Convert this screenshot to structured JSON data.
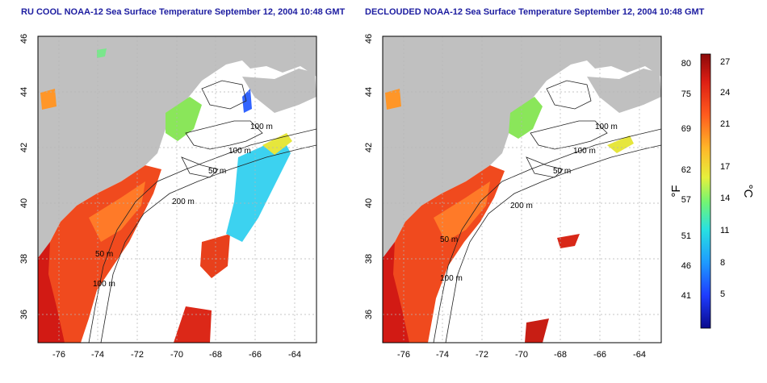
{
  "titles": {
    "left": "RU COOL NOAA-12 Sea Surface Temperature September 12, 2004 10:48 GMT",
    "right": "DECLOUDED NOAA-12 Sea Surface Temperature September 12, 2004 10:48 GMT"
  },
  "axes": {
    "lon_ticks": [
      "-76",
      "-74",
      "-72",
      "-70",
      "-68",
      "-66",
      "-64"
    ],
    "lat_ticks": [
      "36",
      "38",
      "40",
      "42",
      "44",
      "46"
    ],
    "lon_range": [
      -77.2,
      -63.0
    ],
    "lat_range": [
      35.0,
      46.0
    ]
  },
  "contour_labels": [
    "100 m",
    "100 m",
    "50 m",
    "200 m",
    "50 m",
    "100 m"
  ],
  "colorbar": {
    "fahrenheit_label": "°F",
    "celsius_label": "°C",
    "fahrenheit_ticks": [
      "80",
      "75",
      "69",
      "62",
      "57",
      "51",
      "46",
      "41"
    ],
    "celsius_ticks": [
      "27",
      "24",
      "21",
      "17",
      "14",
      "11",
      "8",
      "5"
    ],
    "celsius_range": [
      2,
      28
    ],
    "colors": [
      "#0a0a8c",
      "#1e3cff",
      "#1e9bff",
      "#28e1e1",
      "#73f573",
      "#e6f03c",
      "#ffb428",
      "#ff5a1e",
      "#dc1e14",
      "#8c0a0a"
    ]
  },
  "colors": {
    "land": "#c0c0c0",
    "title": "#1c1ca0",
    "grid": "#b4b4b4"
  }
}
